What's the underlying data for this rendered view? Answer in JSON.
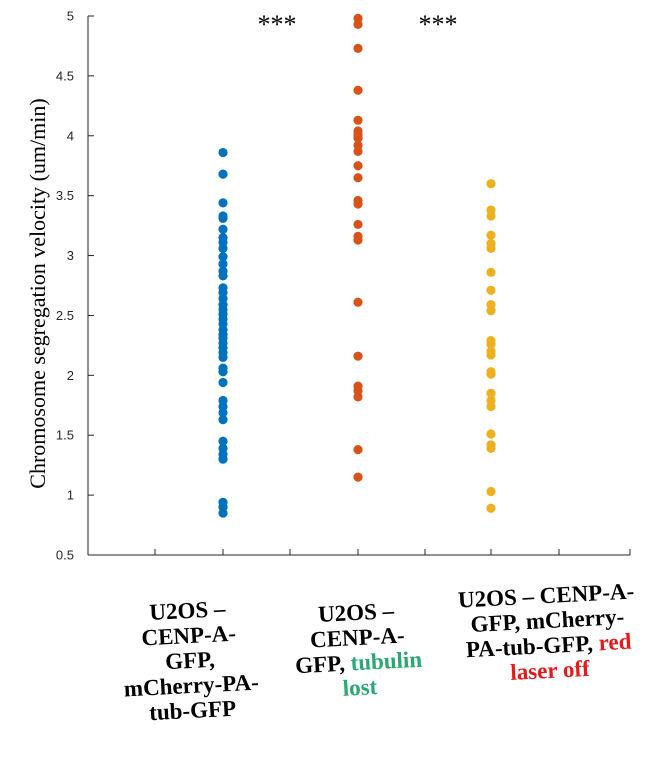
{
  "chart_data": {
    "type": "scatter",
    "ylabel": "Chromosome segregation velocity (um/min)",
    "ylim": [
      0.5,
      5
    ],
    "yticks": [
      0.5,
      1,
      1.5,
      2,
      2.5,
      3,
      3.5,
      4,
      4.5,
      5
    ],
    "ytick_labels": [
      "0.5",
      "1",
      "1.5",
      "2",
      "2.5",
      "3",
      "3.5",
      "4",
      "4.5",
      "5"
    ],
    "significance": [
      "***",
      "***"
    ],
    "categories": [
      {
        "label_parts": [
          {
            "text": "U2OS –\nCENP-A-\nGFP,\nmCherry-PA-\ntub-GFP",
            "style": "normal"
          }
        ]
      },
      {
        "label_parts": [
          {
            "text": "U2OS –\nCENP-A-\nGFP, ",
            "style": "normal"
          },
          {
            "text": "tubulin\nlost",
            "style": "green"
          }
        ]
      },
      {
        "label_parts": [
          {
            "text": "U2OS – CENP-A-\nGFP, mCherry-\nPA-tub-GFP, ",
            "style": "normal"
          },
          {
            "text": "red\nlaser off",
            "style": "red"
          }
        ]
      }
    ],
    "series": [
      {
        "color": "#0072bd",
        "values": [
          3.86,
          3.68,
          3.44,
          3.33,
          3.31,
          3.22,
          3.15,
          3.11,
          3.06,
          2.99,
          2.93,
          2.87,
          2.83,
          2.73,
          2.69,
          2.64,
          2.59,
          2.55,
          2.51,
          2.47,
          2.43,
          2.38,
          2.34,
          2.31,
          2.27,
          2.23,
          2.19,
          2.15,
          2.06,
          2.03,
          1.94,
          1.79,
          1.74,
          1.69,
          1.63,
          1.45,
          1.39,
          1.34,
          1.3,
          0.94,
          0.9,
          0.85
        ]
      },
      {
        "color": "#d95319",
        "values": [
          4.98,
          4.93,
          4.73,
          4.38,
          4.13,
          4.04,
          4.01,
          3.98,
          3.92,
          3.87,
          3.75,
          3.65,
          3.46,
          3.43,
          3.26,
          3.16,
          3.13,
          2.61,
          2.16,
          1.91,
          1.87,
          1.82,
          1.38,
          1.15
        ]
      },
      {
        "color": "#edb120",
        "values": [
          3.6,
          3.38,
          3.33,
          3.17,
          3.1,
          3.06,
          2.86,
          2.71,
          2.59,
          2.54,
          2.29,
          2.26,
          2.2,
          2.17,
          2.03,
          2.01,
          1.85,
          1.79,
          1.74,
          1.51,
          1.42,
          1.39,
          1.03,
          0.89
        ]
      }
    ]
  }
}
